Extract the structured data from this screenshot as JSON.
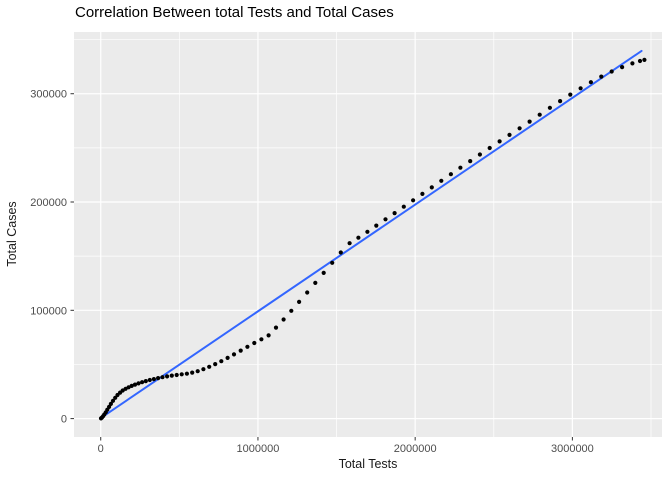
{
  "window": {
    "background": "#FFFFFF"
  },
  "chart_data": {
    "type": "scatter",
    "title": "Correlation Between total Tests and Total Cases",
    "xlabel": "Total Tests",
    "ylabel": "Total Cases",
    "x_ticks": [
      0,
      1000000,
      2000000,
      3000000
    ],
    "x_tick_labels": [
      "0",
      "1000000",
      "2000000",
      "3000000"
    ],
    "x_minor_ticks": [
      500000,
      1500000,
      2500000,
      3500000
    ],
    "y_ticks": [
      0,
      100000,
      200000,
      300000
    ],
    "y_tick_labels": [
      "0",
      "100000",
      "200000",
      "300000"
    ],
    "y_minor_ticks": [
      50000,
      150000,
      250000,
      350000
    ],
    "xlim": [
      -170000,
      3570000
    ],
    "ylim": [
      -17000,
      357000
    ],
    "grid": true,
    "legend": "none",
    "colors": {
      "panel_bg": "#EBEBEB",
      "grid": "#FFFFFF",
      "tick": "#333333",
      "tick_label": "#4D4D4D",
      "point": "#000000",
      "trend": "#3366FF"
    },
    "series": [
      {
        "name": "observations",
        "type": "points",
        "color": "#000000",
        "points": [
          [
            2000,
            200
          ],
          [
            8000,
            1000
          ],
          [
            15000,
            2200
          ],
          [
            23000,
            3800
          ],
          [
            32000,
            5800
          ],
          [
            42000,
            8200
          ],
          [
            53000,
            10800
          ],
          [
            65000,
            13600
          ],
          [
            78000,
            16400
          ],
          [
            92000,
            19200
          ],
          [
            107000,
            21800
          ],
          [
            123000,
            24000
          ],
          [
            140000,
            25900
          ],
          [
            158000,
            27500
          ],
          [
            177000,
            28900
          ],
          [
            197000,
            30200
          ],
          [
            218000,
            31400
          ],
          [
            240000,
            32500
          ],
          [
            263000,
            33600
          ],
          [
            287000,
            34600
          ],
          [
            312000,
            35600
          ],
          [
            338000,
            36500
          ],
          [
            365000,
            37400
          ],
          [
            393000,
            38200
          ],
          [
            422000,
            39000
          ],
          [
            452000,
            39700
          ],
          [
            483000,
            40300
          ],
          [
            515000,
            40900
          ],
          [
            548000,
            41500
          ],
          [
            582000,
            42500
          ],
          [
            617000,
            43800
          ],
          [
            653000,
            45600
          ],
          [
            690000,
            47800
          ],
          [
            728000,
            50300
          ],
          [
            767000,
            53000
          ],
          [
            807000,
            56000
          ],
          [
            848000,
            59300
          ],
          [
            890000,
            62800
          ],
          [
            933000,
            66300
          ],
          [
            977000,
            69800
          ],
          [
            1022000,
            73200
          ],
          [
            1068000,
            76800
          ],
          [
            1115000,
            84000
          ],
          [
            1163000,
            91500
          ],
          [
            1212000,
            99500
          ],
          [
            1262000,
            107800
          ],
          [
            1313000,
            116400
          ],
          [
            1365000,
            125300
          ],
          [
            1418000,
            134500
          ],
          [
            1472000,
            143900
          ],
          [
            1527000,
            153400
          ],
          [
            1583000,
            162000
          ],
          [
            1639000,
            167000
          ],
          [
            1696000,
            172500
          ],
          [
            1753000,
            178200
          ],
          [
            1811000,
            184000
          ],
          [
            1869000,
            189800
          ],
          [
            1928000,
            195700
          ],
          [
            1987000,
            201600
          ],
          [
            2046000,
            207500
          ],
          [
            2106000,
            213500
          ],
          [
            2166000,
            219600
          ],
          [
            2227000,
            225700
          ],
          [
            2288000,
            231700
          ],
          [
            2350000,
            237800
          ],
          [
            2412000,
            243900
          ],
          [
            2474000,
            249900
          ],
          [
            2537000,
            256000
          ],
          [
            2600000,
            262000
          ],
          [
            2664000,
            268100
          ],
          [
            2728000,
            274300
          ],
          [
            2792000,
            280600
          ],
          [
            2857000,
            287000
          ],
          [
            2922000,
            293200
          ],
          [
            2987000,
            299200
          ],
          [
            3052000,
            305000
          ],
          [
            3118000,
            310600
          ],
          [
            3184000,
            315800
          ],
          [
            3250000,
            320500
          ],
          [
            3316000,
            324600
          ],
          [
            3382000,
            328000
          ],
          [
            3430000,
            330200
          ],
          [
            3458000,
            331200
          ]
        ]
      },
      {
        "name": "linear-fit",
        "type": "line",
        "color": "#3366FF",
        "points": [
          [
            0,
            500
          ],
          [
            3440000,
            339500
          ]
        ]
      }
    ]
  }
}
